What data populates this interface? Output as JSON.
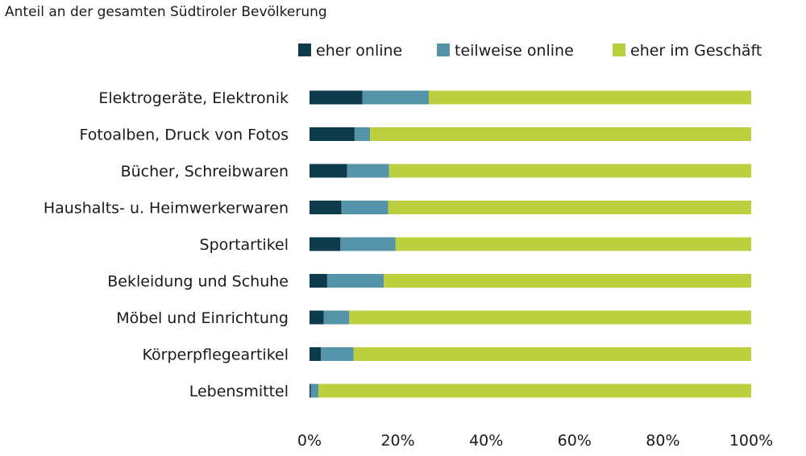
{
  "chart_data": {
    "type": "bar",
    "orientation": "horizontal",
    "stacked": true,
    "subtitle": "Anteil an der gesamten Südtiroler Bevölkerung",
    "categories": [
      "Elektrogeräte, Elektronik",
      "Fotoalben, Druck von Fotos",
      "Bücher, Schreibwaren",
      "Haushalts- u. Heimwerkerwaren",
      "Sportartikel",
      "Bekleidung und Schuhe",
      "Möbel und Einrichtung",
      "Körperpflegeartikel",
      "Lebensmittel"
    ],
    "series": [
      {
        "name": "eher online",
        "color": "#0d3b4c",
        "values": [
          12.0,
          10.2,
          8.5,
          7.2,
          7.0,
          4.0,
          3.2,
          2.6,
          0.3
        ]
      },
      {
        "name": "teilweise online",
        "color": "#5593a9",
        "values": [
          15.0,
          3.5,
          9.5,
          10.6,
          12.5,
          12.8,
          5.8,
          7.4,
          1.7
        ]
      },
      {
        "name": "eher im Geschäft",
        "color": "#bcd03f",
        "values": [
          73.0,
          86.3,
          82.0,
          82.2,
          80.5,
          83.2,
          91.0,
          90.0,
          98.0
        ]
      }
    ],
    "xlim": [
      0,
      100
    ],
    "x_ticks": [
      "0%",
      "20%",
      "40%",
      "60%",
      "80%",
      "100%"
    ],
    "legend_position": "top-right",
    "grid": false
  }
}
